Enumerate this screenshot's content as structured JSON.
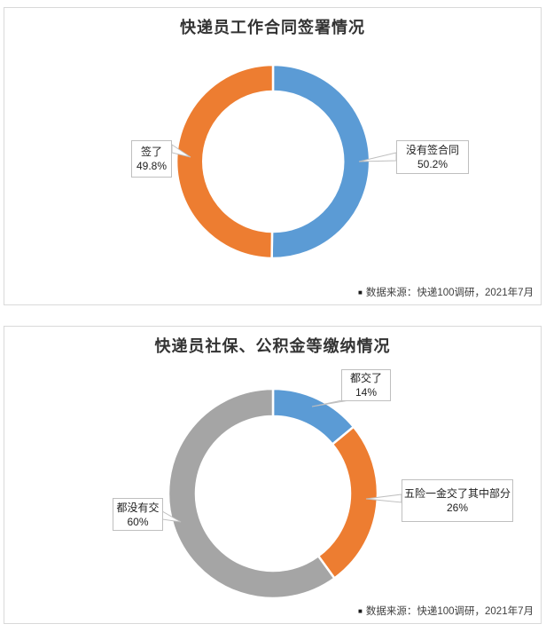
{
  "page": {
    "background": "#ffffff",
    "panel_border_color": "#d9d9d9"
  },
  "chart_data": [
    {
      "type": "pie",
      "subtype": "donut",
      "title": "快递员工作合同签署情况",
      "labels": [
        "没有签合同",
        "签了"
      ],
      "values": [
        50.2,
        49.8
      ],
      "unit": "%",
      "colors": [
        "#5b9bd5",
        "#ed7d31"
      ],
      "start_angle_deg": 0,
      "direction": "clockwise",
      "legend": "none",
      "callouts": [
        {
          "label": "签了",
          "value_text": "49.8%"
        },
        {
          "label": "没有签合同",
          "value_text": "50.2%"
        }
      ],
      "source_bullet": "■",
      "source_note": "数据来源：快递100调研，2021年7月"
    },
    {
      "type": "pie",
      "subtype": "donut",
      "title": "快递员社保、公积金等缴纳情况",
      "labels": [
        "都交了",
        "五险一金交了其中部分",
        "都没有交"
      ],
      "values": [
        14,
        26,
        60
      ],
      "unit": "%",
      "colors": [
        "#5b9bd5",
        "#ed7d31",
        "#a5a5a5"
      ],
      "start_angle_deg": 0,
      "direction": "clockwise",
      "legend": "none",
      "callouts": [
        {
          "label": "都交了",
          "value_text": "14%"
        },
        {
          "label": "五险一金交了其中部分",
          "value_text": "26%"
        },
        {
          "label": "都没有交",
          "value_text": "60%"
        }
      ],
      "source_bullet": "■",
      "source_note": "数据来源：快递100调研，2021年7月"
    }
  ]
}
